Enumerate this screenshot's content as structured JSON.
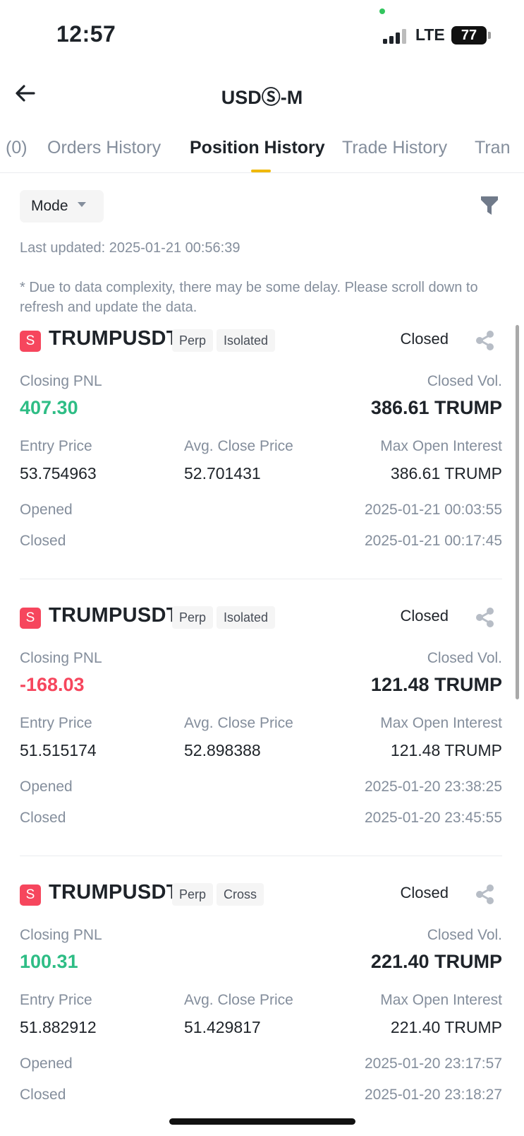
{
  "status_bar": {
    "time": "12:57",
    "network": "LTE",
    "battery": "77"
  },
  "header": {
    "title": "USDⓈ-M"
  },
  "tabs": [
    {
      "label": "(0)"
    },
    {
      "label": "Orders History"
    },
    {
      "label": "Position History",
      "active": true
    },
    {
      "label": "Trade History"
    },
    {
      "label": "Tran"
    }
  ],
  "filters": {
    "mode_label": "Mode"
  },
  "last_updated": "Last updated: 2025-01-21 00:56:39",
  "notice": "* Due to data complexity, there may be some delay. Please scroll down to refresh and update the data.",
  "labels": {
    "closing_pnl": "Closing PNL",
    "closed_vol": "Closed Vol.",
    "entry_price": "Entry Price",
    "avg_close_price": "Avg. Close Price",
    "max_open_interest": "Max Open Interest",
    "opened": "Opened",
    "closed": "Closed"
  },
  "colors": {
    "profit": "#2ebd85",
    "loss": "#f6465d",
    "accent": "#f0b90b"
  },
  "positions": [
    {
      "badge": "S",
      "symbol": "TRUMPUSDT",
      "tags": [
        "Perp",
        "Isolated"
      ],
      "status": "Closed",
      "closing_pnl": "407.30",
      "pnl_sign": "profit",
      "closed_vol": "386.61 TRUMP",
      "entry_price": "53.754963",
      "avg_close_price": "52.701431",
      "max_open_interest": "386.61 TRUMP",
      "opened": "2025-01-21 00:03:55",
      "closed": "2025-01-21 00:17:45"
    },
    {
      "badge": "S",
      "symbol": "TRUMPUSDT",
      "tags": [
        "Perp",
        "Isolated"
      ],
      "status": "Closed",
      "closing_pnl": "-168.03",
      "pnl_sign": "loss",
      "closed_vol": "121.48 TRUMP",
      "entry_price": "51.515174",
      "avg_close_price": "52.898388",
      "max_open_interest": "121.48 TRUMP",
      "opened": "2025-01-20 23:38:25",
      "closed": "2025-01-20 23:45:55"
    },
    {
      "badge": "S",
      "symbol": "TRUMPUSDT",
      "tags": [
        "Perp",
        "Cross"
      ],
      "status": "Closed",
      "closing_pnl": "100.31",
      "pnl_sign": "profit",
      "closed_vol": "221.40 TRUMP",
      "entry_price": "51.882912",
      "avg_close_price": "51.429817",
      "max_open_interest": "221.40 TRUMP",
      "opened": "2025-01-20 23:17:57",
      "closed": "2025-01-20 23:18:27"
    }
  ]
}
